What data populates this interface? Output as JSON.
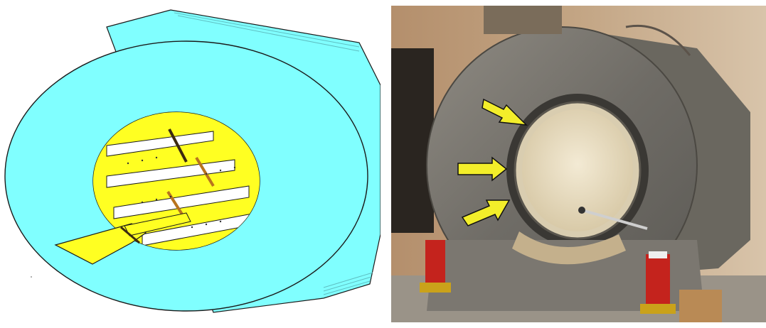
{
  "colors": {
    "housing_cyan": "#80ffff",
    "shim_yellow": "#ffff00",
    "outline": "#1a1a1a",
    "arrow_yellow": "#f3ee2a",
    "magnet_metal": "#7d7a73",
    "room_wall": "#b3957a"
  },
  "icons": {
    "arrow": "yellow-arrow-icon"
  },
  "panels": {
    "left": "cad-shim-tray-illustration",
    "right": "mri-magnet-photo"
  }
}
